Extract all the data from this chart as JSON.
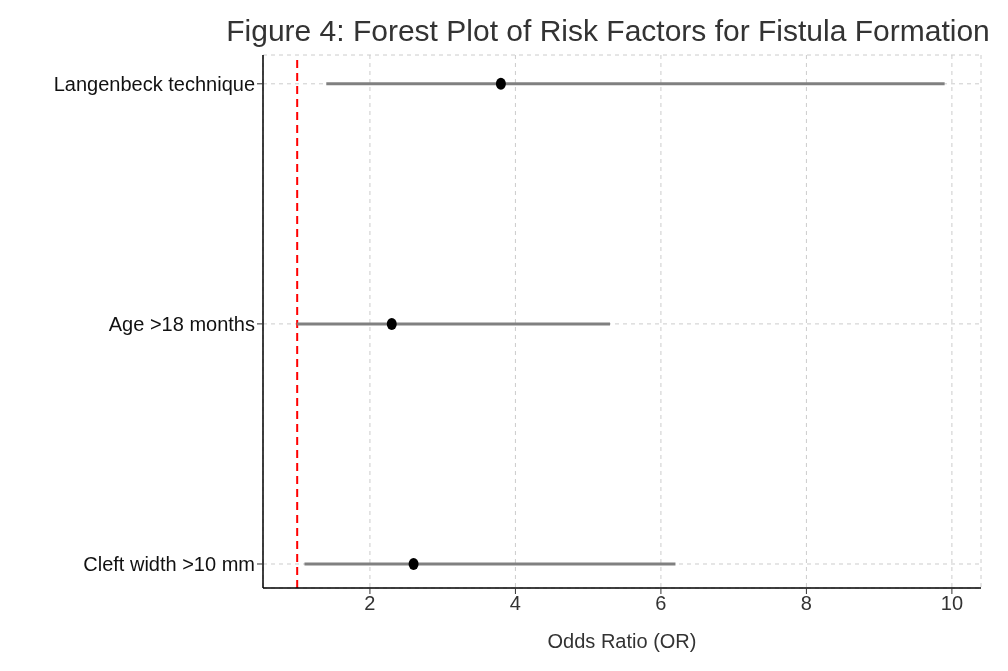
{
  "chart_data": {
    "type": "scatter",
    "orientation": "horizontal",
    "title": "Figure 4: Forest Plot of Risk Factors for Fistula Formation",
    "xlabel": "Odds Ratio (OR)",
    "categories": [
      "Langenbeck technique",
      "Age >18 months",
      "Cleft width >10 mm"
    ],
    "series": [
      {
        "color": "#000000",
        "values": [
          3.8,
          2.3,
          2.6
        ],
        "errors": [
          [
            1.4,
            9.9
          ],
          [
            1.0,
            5.3
          ],
          [
            1.1,
            6.2
          ]
        ]
      }
    ],
    "xlim": [
      0.53,
      10.4
    ],
    "xticks": [
      2,
      4,
      6,
      8,
      10
    ],
    "ref_lines": [
      {
        "axis": "x",
        "value": 1,
        "color": "#ff0000",
        "line_style": "dashed"
      }
    ],
    "grid": true,
    "marker": "circle",
    "legend": false
  }
}
